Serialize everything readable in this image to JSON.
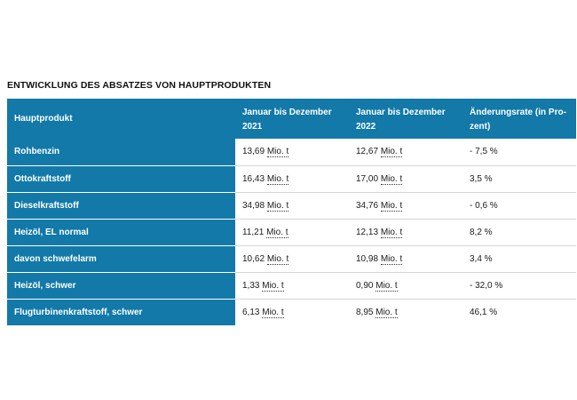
{
  "title": "ENTWICKLUNG DES ABSATZES VON HAUPTPRODUKTEN",
  "table": {
    "headers": {
      "product": "Hauptprodukt",
      "period_2021": "Januar bis Dezember 2021",
      "period_2022": "Januar bis Dezember 2022",
      "change": "Änderungsrate (in Pro-zent)"
    },
    "rows": [
      {
        "product": "Rohbenzin",
        "v2021": "13,69",
        "u2021": "Mio. t",
        "v2022": "12,67",
        "u2022": "Mio. t",
        "change": "- 7,5 %"
      },
      {
        "product": "Ottokraftstoff",
        "v2021": "16,43",
        "u2021": "Mio. t",
        "v2022": "17,00",
        "u2022": "Mio. t",
        "change": "3,5 %"
      },
      {
        "product": "Dieselkraftstoff",
        "v2021": "34,98",
        "u2021": "Mio. t",
        "v2022": "34,76",
        "u2022": "Mio. t",
        "change": "- 0,6 %"
      },
      {
        "product": "Heizöl, EL normal",
        "v2021": "11,21",
        "u2021": "Mio. t",
        "v2022": "12,13",
        "u2022": "Mio. t",
        "change": "8,2 %"
      },
      {
        "product": "davon schwefelarm",
        "v2021": "10,62",
        "u2021": "Mio. t",
        "v2022": "10,98",
        "u2022": "Mio. t",
        "change": "3,4 %"
      },
      {
        "product": "Heizöl, schwer",
        "v2021": "1,33",
        "u2021": "Mio. t",
        "v2022": "0,90",
        "u2022": "Mio. t",
        "change": "- 32,0 %"
      },
      {
        "product": "Flugturbinenkraftstoff, schwer",
        "v2021": "6,13",
        "u2021": "Mio. t",
        "v2022": "8,95",
        "u2022": "Mio. t",
        "change": "46,1 %"
      }
    ]
  },
  "colors": {
    "header_blue": "#1279a8",
    "row_divider": "#d6d6d6"
  }
}
